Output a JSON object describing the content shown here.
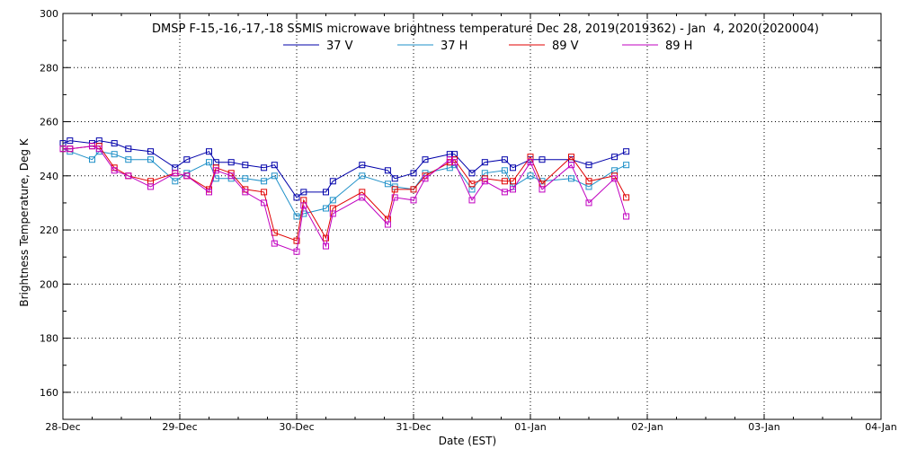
{
  "chart_data": {
    "type": "line",
    "title": "DMSP F-15,-16,-17,-18 SSMIS microwave brightness temperature Dec 28, 2019(2019362) - Jan  4, 2020(2020004)",
    "xlabel": "Date (EST)",
    "ylabel": "Brightness Temperature, Deg K",
    "x_tick_labels": [
      "28-Dec",
      "29-Dec",
      "30-Dec",
      "31-Dec",
      "01-Jan",
      "02-Jan",
      "03-Jan",
      "04-Jan"
    ],
    "xlim": [
      0,
      7
    ],
    "ylim": [
      150,
      300
    ],
    "y_ticks": [
      160,
      180,
      200,
      220,
      240,
      260,
      280,
      300
    ],
    "grid": true,
    "legend_position": "top",
    "x": [
      0.0,
      0.06,
      0.25,
      0.31,
      0.44,
      0.56,
      0.75,
      0.96,
      1.06,
      1.25,
      1.31,
      1.44,
      1.56,
      1.72,
      1.81,
      2.0,
      2.06,
      2.25,
      2.31,
      2.56,
      2.78,
      2.84,
      3.0,
      3.1,
      3.31,
      3.35,
      3.5,
      3.61,
      3.78,
      3.85,
      4.0,
      4.1,
      4.35,
      4.5,
      4.72,
      4.82
    ],
    "series": [
      {
        "name": "37 V",
        "color": "#0000aa",
        "values": [
          252,
          253,
          252,
          253,
          252,
          250,
          249,
          243,
          246,
          249,
          245,
          245,
          244,
          243,
          244,
          232,
          234,
          234,
          238,
          244,
          242,
          239,
          241,
          246,
          248,
          248,
          241,
          245,
          246,
          243,
          246,
          246,
          246,
          244,
          247,
          249
        ]
      },
      {
        "name": "37 H",
        "color": "#1e90c8",
        "values": [
          250,
          249,
          246,
          249,
          248,
          246,
          246,
          238,
          241,
          245,
          239,
          239,
          239,
          238,
          240,
          225,
          226,
          228,
          231,
          240,
          237,
          236,
          235,
          241,
          243,
          244,
          235,
          241,
          242,
          236,
          240,
          238,
          239,
          236,
          242,
          244
        ]
      },
      {
        "name": "89 V",
        "color": "#e00000",
        "values": [
          250,
          250,
          251,
          251,
          243,
          240,
          238,
          241,
          240,
          235,
          243,
          241,
          235,
          234,
          219,
          216,
          231,
          217,
          228,
          234,
          224,
          235,
          235,
          240,
          245,
          246,
          237,
          239,
          238,
          238,
          247,
          237,
          247,
          238,
          240,
          232
        ]
      },
      {
        "name": "89 H",
        "color": "#c000c0",
        "values": [
          250,
          250,
          251,
          250,
          242,
          240,
          236,
          241,
          240,
          234,
          242,
          240,
          234,
          230,
          215,
          212,
          229,
          214,
          226,
          232,
          222,
          232,
          231,
          239,
          246,
          245,
          231,
          238,
          234,
          235,
          245,
          235,
          244,
          230,
          239,
          225
        ]
      }
    ]
  }
}
